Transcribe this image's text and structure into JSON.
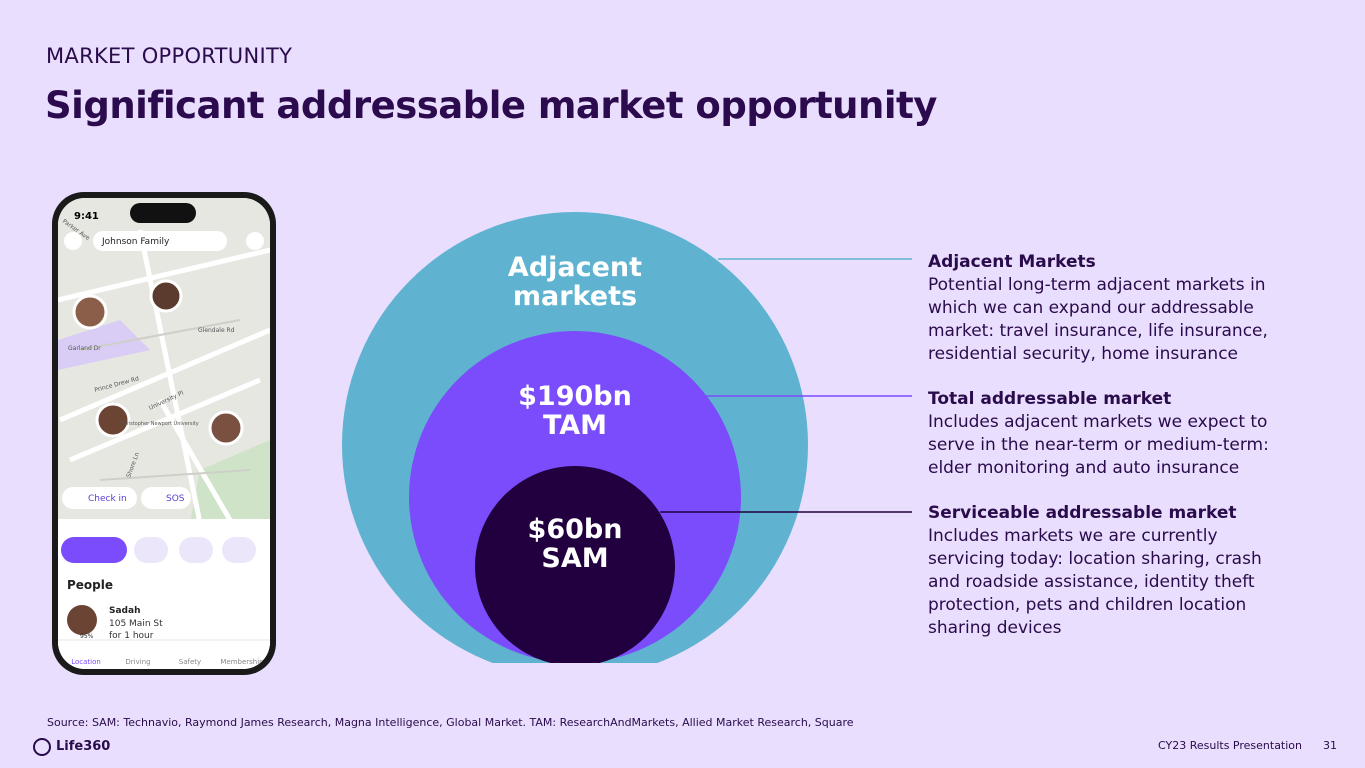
{
  "header": {
    "eyebrow": "MARKET OPPORTUNITY",
    "title": "Significant addressable market opportunity"
  },
  "circles": [
    {
      "label": "Adjacent markets"
    },
    {
      "value": "$190bn",
      "label": "TAM"
    },
    {
      "value": "$60bn",
      "label": "SAM"
    }
  ],
  "descriptions": [
    {
      "heading": "Adjacent Markets",
      "body": "Potential long-term adjacent markets in which we can expand our addressable market: travel insurance, life insurance, residential security, home insurance"
    },
    {
      "heading": "Total addressable market",
      "body": "Includes adjacent markets we expect to serve in the near-term or medium-term: elder monitoring and auto insurance"
    },
    {
      "heading": "Serviceable addressable market",
      "body": "Includes markets we are currently servicing today: location sharing, crash and roadside assistance, identity theft protection, pets and children location sharing devices"
    }
  ],
  "phone": {
    "time": "9:41",
    "circle": "Johnson Family",
    "streets": [
      "Parker Ave",
      "Garland Dr",
      "Glendale Rd",
      "Prince Drew Rd",
      "University Pl",
      "Shore Ln",
      "Christopher Newport University"
    ],
    "buttons": [
      "Check in",
      "SOS"
    ],
    "section": "People",
    "person": {
      "name": "Sadah",
      "address": "105 Main St",
      "duration": "for 1 hour",
      "battery": "95%"
    },
    "nav": [
      "Location",
      "Driving",
      "Safety",
      "Membership"
    ]
  },
  "footer": {
    "source": "Source: SAM: Technavio, Raymond James Research, Magna Intelligence, Global Market. TAM: ResearchAndMarkets, Allied Market Research, Square",
    "logo": "Life360",
    "presentation": "CY23 Results Presentation",
    "page": "31"
  }
}
